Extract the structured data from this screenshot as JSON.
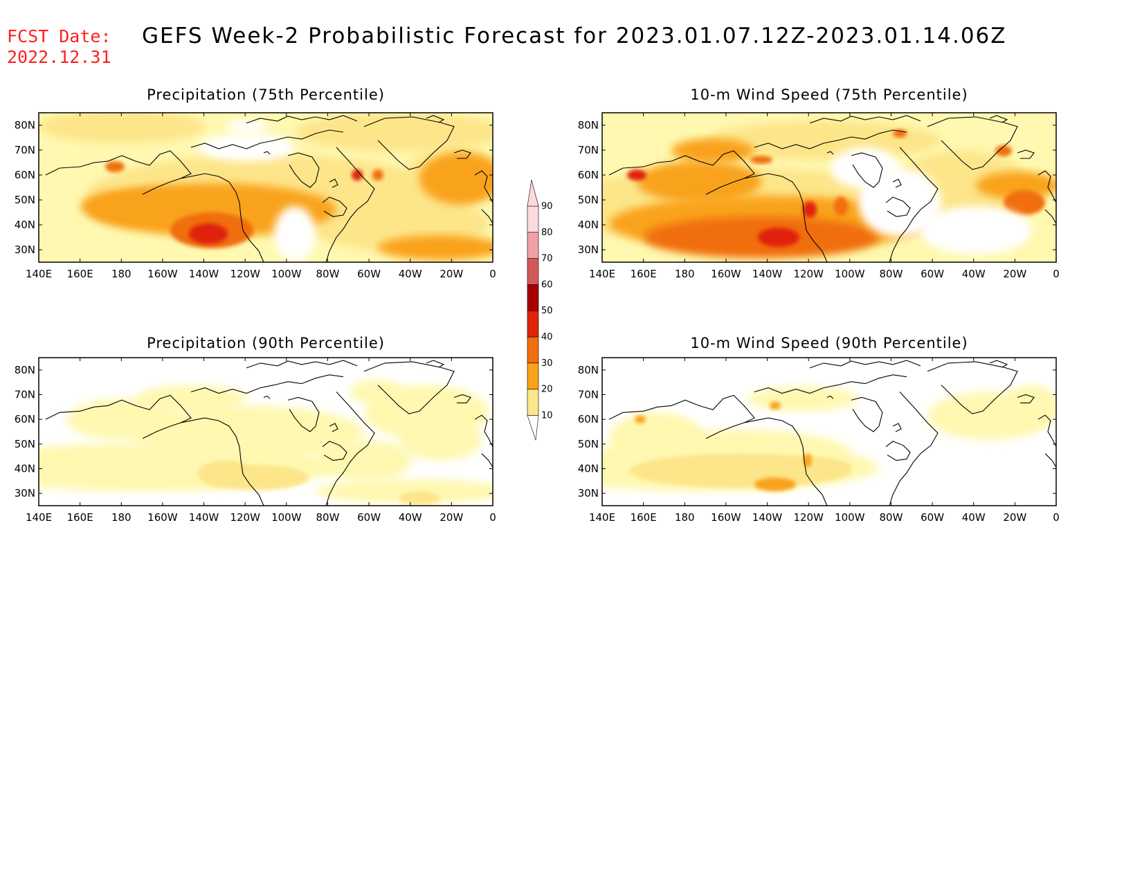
{
  "header": {
    "fcst_label": "FCST Date:",
    "fcst_date": "2022.12.31",
    "title": "GEFS Week-2 Probabilistic Forecast for 2023.01.07.12Z-2023.01.14.06Z"
  },
  "panels": [
    {
      "id": "precip75",
      "title": "Precipitation (75th Percentile)"
    },
    {
      "id": "wind75",
      "title": "10-m Wind Speed (75th Percentile)"
    },
    {
      "id": "precip90",
      "title": "Precipitation (90th Percentile)"
    },
    {
      "id": "wind90",
      "title": "10-m Wind Speed (90th Percentile)"
    }
  ],
  "axes": {
    "lon_labels": [
      "140E",
      "160E",
      "180",
      "160W",
      "140W",
      "120W",
      "100W",
      "80W",
      "60W",
      "40W",
      "20W",
      "0"
    ],
    "lat_labels": [
      "80N",
      "70N",
      "60N",
      "50N",
      "40N",
      "30N"
    ]
  },
  "colorbar": {
    "levels": [
      "10",
      "20",
      "30",
      "40",
      "50",
      "60",
      "70",
      "80",
      "90"
    ],
    "colors": [
      "#fff8b0",
      "#fde58a",
      "#f9a31c",
      "#f06e0d",
      "#e02408",
      "#a80000",
      "#d35a5a",
      "#f2a0a8",
      "#fbd9dc"
    ]
  }
}
